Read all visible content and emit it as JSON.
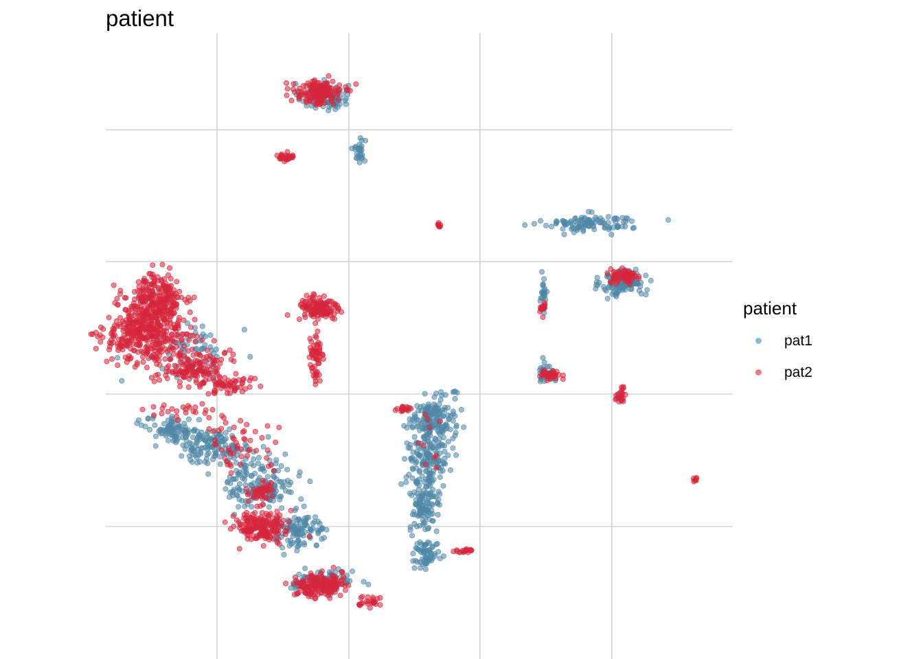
{
  "chart_data": {
    "type": "scatter",
    "title": "patient",
    "xlabel": "",
    "ylabel": "",
    "grid": true,
    "legend_placement": "right",
    "legend_title": "patient",
    "xlim": [
      -7.2,
      14.6
    ],
    "ylim": [
      -16.9,
      10.4
    ],
    "series": [
      {
        "name": "pat1",
        "color": "#4f87a6",
        "clusters": [
          {
            "cx": 0.4,
            "cy": 7.6,
            "sx": 0.55,
            "sy": 0.4,
            "n": 90
          },
          {
            "cx": 1.6,
            "cy": 5.3,
            "sx": 0.15,
            "sy": 0.35,
            "n": 30
          },
          {
            "cx": 9.7,
            "cy": 2.1,
            "sx": 1.1,
            "sy": 0.25,
            "n": 110
          },
          {
            "cx": 10.8,
            "cy": -0.5,
            "sx": 0.5,
            "sy": 0.4,
            "n": 120
          },
          {
            "cx": 8.0,
            "cy": -1.0,
            "sx": 0.1,
            "sy": 0.5,
            "n": 25
          },
          {
            "cx": 8.2,
            "cy": -4.4,
            "sx": 0.25,
            "sy": 0.3,
            "n": 40
          },
          {
            "cx": -4.9,
            "cy": -6.9,
            "sx": 0.6,
            "sy": 0.35,
            "n": 80
          },
          {
            "cx": -3.5,
            "cy": -7.6,
            "sx": 0.9,
            "sy": 0.5,
            "n": 140
          },
          {
            "cx": -1.8,
            "cy": -9.3,
            "sx": 0.8,
            "sy": 0.7,
            "n": 160
          },
          {
            "cx": -0.5,
            "cy": -11.3,
            "sx": 0.7,
            "sy": 0.5,
            "n": 110
          },
          {
            "cx": 0.4,
            "cy": -13.5,
            "sx": 0.7,
            "sy": 0.3,
            "n": 80
          },
          {
            "cx": 4.2,
            "cy": -6.5,
            "sx": 0.5,
            "sy": 0.7,
            "n": 150
          },
          {
            "cx": 4.0,
            "cy": -8.0,
            "sx": 0.5,
            "sy": 1.0,
            "n": 150
          },
          {
            "cx": 3.9,
            "cy": -10.3,
            "sx": 0.35,
            "sy": 0.8,
            "n": 110
          },
          {
            "cx": 3.9,
            "cy": -12.3,
            "sx": 0.35,
            "sy": 0.4,
            "n": 60
          },
          {
            "cx": -4.0,
            "cy": -3.3,
            "sx": 0.9,
            "sy": 0.7,
            "n": 60
          },
          {
            "cx": 4.9,
            "cy": -5.3,
            "sx": 0.05,
            "sy": 0.05,
            "n": 4
          }
        ]
      },
      {
        "name": "pat2",
        "color": "#d6263c",
        "clusters": [
          {
            "cx": 0.2,
            "cy": 7.8,
            "sx": 0.55,
            "sy": 0.35,
            "n": 160
          },
          {
            "cx": -1.0,
            "cy": 5.0,
            "sx": 0.25,
            "sy": 0.12,
            "n": 30
          },
          {
            "cx": 4.4,
            "cy": 2.0,
            "sx": 0.06,
            "sy": 0.06,
            "n": 8
          },
          {
            "cx": 0.2,
            "cy": -1.6,
            "sx": 0.45,
            "sy": 0.4,
            "n": 130
          },
          {
            "cx": 0.1,
            "cy": -3.9,
            "sx": 0.2,
            "sy": 0.8,
            "n": 60
          },
          {
            "cx": -5.5,
            "cy": -1.4,
            "sx": 0.7,
            "sy": 0.8,
            "n": 300
          },
          {
            "cx": -5.8,
            "cy": -2.8,
            "sx": 1.0,
            "sy": 0.7,
            "n": 300
          },
          {
            "cx": -4.2,
            "cy": -4.2,
            "sx": 0.8,
            "sy": 0.5,
            "n": 150
          },
          {
            "cx": -3.0,
            "cy": -4.9,
            "sx": 0.6,
            "sy": 0.3,
            "n": 60
          },
          {
            "cx": -4.5,
            "cy": -6.2,
            "sx": 0.9,
            "sy": 0.4,
            "n": 25
          },
          {
            "cx": -1.8,
            "cy": -11.1,
            "sx": 0.6,
            "sy": 0.45,
            "n": 180
          },
          {
            "cx": -1.8,
            "cy": -9.6,
            "sx": 0.3,
            "sy": 0.3,
            "n": 40
          },
          {
            "cx": 0.2,
            "cy": -13.7,
            "sx": 0.55,
            "sy": 0.35,
            "n": 170
          },
          {
            "cx": 1.9,
            "cy": -14.4,
            "sx": 0.35,
            "sy": 0.15,
            "n": 25
          },
          {
            "cx": 10.8,
            "cy": -0.2,
            "sx": 0.3,
            "sy": 0.2,
            "n": 60
          },
          {
            "cx": 8.3,
            "cy": -4.5,
            "sx": 0.25,
            "sy": 0.12,
            "n": 40
          },
          {
            "cx": 8.0,
            "cy": -1.6,
            "sx": 0.08,
            "sy": 0.2,
            "n": 14
          },
          {
            "cx": 10.7,
            "cy": -5.4,
            "sx": 0.15,
            "sy": 0.2,
            "n": 25
          },
          {
            "cx": 3.2,
            "cy": -6.0,
            "sx": 0.15,
            "sy": 0.08,
            "n": 18
          },
          {
            "cx": 5.2,
            "cy": -12.2,
            "sx": 0.3,
            "sy": 0.06,
            "n": 18
          },
          {
            "cx": 13.3,
            "cy": -9.1,
            "sx": 0.05,
            "sy": 0.05,
            "n": 8
          },
          {
            "cx": 4.1,
            "cy": -7.5,
            "sx": 0.3,
            "sy": 1.5,
            "n": 10
          },
          {
            "cx": -2.5,
            "cy": -7.5,
            "sx": 1.0,
            "sy": 0.8,
            "n": 50
          }
        ]
      }
    ]
  }
}
